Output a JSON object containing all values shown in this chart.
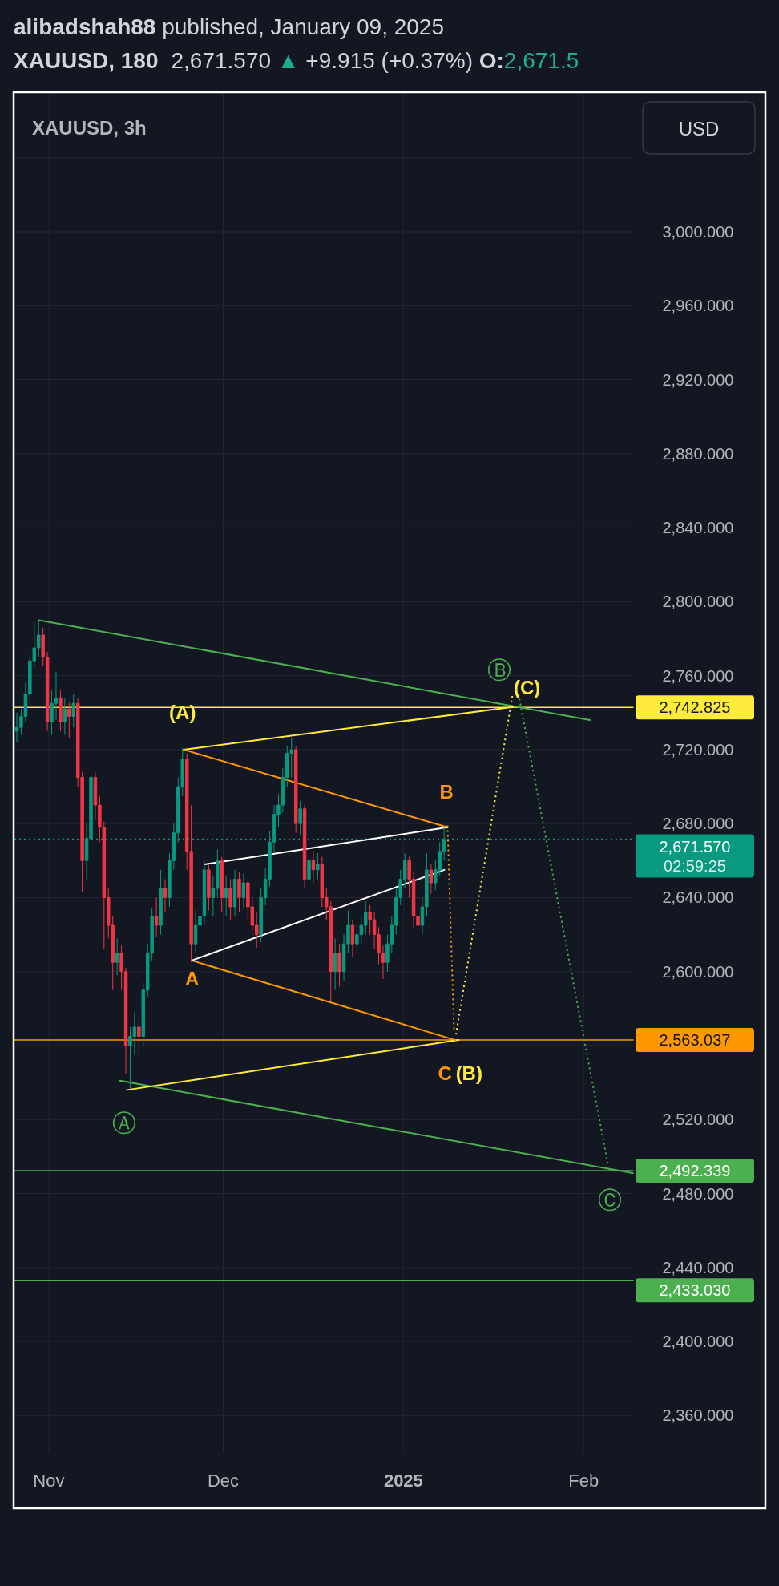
{
  "chart_data": {
    "type": "candlestick",
    "title": "XAUUSD, 180",
    "subtitle": "2,671.570 ▲ +9.915 (+0.37%) O:2,671.5",
    "annotations": [
      "alibadshah88 published, January 09, 2025",
      "XAUUSD, 3h",
      "USD",
      {
        "text": "(A)",
        "x": "2024-11-24T00:00",
        "y": 2721
      },
      {
        "text": "A",
        "x": "2024-11-25T12:00",
        "y": 2605
      },
      {
        "text": "B",
        "x": "2025-01-08T00:00",
        "y": 2678.5
      },
      {
        "text": "C",
        "x": "2025-01-10T12:00",
        "y": 2563
      },
      {
        "text": "(B)",
        "x": "2025-01-10T12:00",
        "y": 2563
      },
      {
        "text": "Ⓐ",
        "x": "2024-11-15T00:00",
        "y": 2537
      },
      {
        "text": "Ⓑ",
        "x": "2025-01-19T19:00",
        "y": 2750
      },
      {
        "text": "(C)",
        "x": "2025-01-19T19:00",
        "y": 2750
      },
      {
        "text": "Ⓒ",
        "x": "2025-02-05T07:00",
        "y": 2494
      }
    ],
    "x": [
      "2024-10-26T12:00",
      "2024-10-27T06:00",
      "2024-10-28T00:00",
      "2024-10-28T18:00",
      "2024-10-29T12:00",
      "2024-10-30T06:00",
      "2024-10-31T00:00",
      "2024-10-31T18:00",
      "2024-11-01T12:00",
      "2024-11-02T06:00",
      "2024-11-03T00:00",
      "2024-11-03T18:00",
      "2024-11-04T12:00",
      "2024-11-05T06:00",
      "2024-11-06T00:00",
      "2024-11-06T18:00",
      "2024-11-07T12:00",
      "2024-11-08T06:00",
      "2024-11-09T00:00",
      "2024-11-09T18:00",
      "2024-11-10T12:00",
      "2024-11-11T06:00",
      "2024-11-12T00:00",
      "2024-11-12T18:00",
      "2024-11-13T12:00",
      "2024-11-14T06:00",
      "2024-11-15T00:00",
      "2024-11-15T18:00",
      "2024-11-16T12:00",
      "2024-11-17T06:00",
      "2024-11-18T00:00",
      "2024-11-18T18:00",
      "2024-11-19T12:00",
      "2024-11-20T06:00",
      "2024-11-21T00:00",
      "2024-11-21T18:00",
      "2024-11-22T12:00",
      "2024-11-23T06:00",
      "2024-11-24T00:00",
      "2024-11-24T18:00",
      "2024-11-25T12:00",
      "2024-11-26T06:00",
      "2024-11-27T00:00",
      "2024-11-27T18:00",
      "2024-11-28T12:00",
      "2024-11-29T06:00",
      "2024-11-30T00:00",
      "2024-11-30T18:00",
      "2024-12-01T12:00",
      "2024-12-02T06:00",
      "2024-12-03T00:00",
      "2024-12-03T18:00",
      "2024-12-04T12:00",
      "2024-12-05T06:00",
      "2024-12-06T00:00",
      "2024-12-06T18:00",
      "2024-12-07T12:00",
      "2024-12-08T06:00",
      "2024-12-09T00:00",
      "2024-12-09T18:00",
      "2024-12-10T12:00",
      "2024-12-11T06:00",
      "2024-12-12T00:00",
      "2024-12-12T18:00",
      "2024-12-13T12:00",
      "2024-12-14T06:00",
      "2024-12-15T00:00",
      "2024-12-15T18:00",
      "2024-12-16T12:00",
      "2024-12-17T06:00",
      "2024-12-18T00:00",
      "2024-12-18T18:00",
      "2024-12-19T12:00",
      "2024-12-20T06:00",
      "2024-12-21T00:00",
      "2024-12-21T18:00",
      "2024-12-22T12:00",
      "2024-12-23T06:00",
      "2024-12-24T00:00",
      "2024-12-24T18:00",
      "2024-12-25T12:00",
      "2024-12-26T06:00",
      "2024-12-27T00:00",
      "2024-12-27T18:00",
      "2024-12-28T12:00",
      "2024-12-29T06:00",
      "2024-12-30T00:00",
      "2024-12-30T18:00",
      "2024-12-31T12:00",
      "2025-01-01T06:00",
      "2025-01-02T00:00",
      "2025-01-02T18:00",
      "2025-01-03T12:00",
      "2025-01-04T06:00",
      "2025-01-05T00:00",
      "2025-01-05T18:00",
      "2025-01-06T12:00",
      "2025-01-07T06:00",
      "2025-01-08T00:00"
    ],
    "ohlc": [
      [
        2730,
        2740,
        2724,
        2732
      ],
      [
        2732,
        2742,
        2728,
        2738
      ],
      [
        2738,
        2756,
        2735,
        2750
      ],
      [
        2750,
        2772,
        2746,
        2768
      ],
      [
        2768,
        2789,
        2764,
        2775
      ],
      [
        2775,
        2790,
        2770,
        2782
      ],
      [
        2782,
        2786,
        2765,
        2770
      ],
      [
        2770,
        2773,
        2730,
        2735
      ],
      [
        2735,
        2752,
        2728,
        2745
      ],
      [
        2745,
        2762,
        2736,
        2748
      ],
      [
        2748,
        2752,
        2730,
        2735
      ],
      [
        2735,
        2748,
        2728,
        2742
      ],
      [
        2742,
        2746,
        2726,
        2738
      ],
      [
        2738,
        2750,
        2732,
        2745
      ],
      [
        2745,
        2748,
        2700,
        2705
      ],
      [
        2705,
        2708,
        2643,
        2660
      ],
      [
        2660,
        2680,
        2650,
        2672
      ],
      [
        2672,
        2710,
        2668,
        2705
      ],
      [
        2705,
        2708,
        2682,
        2690
      ],
      [
        2690,
        2695,
        2670,
        2678
      ],
      [
        2678,
        2681,
        2612,
        2640
      ],
      [
        2640,
        2645,
        2618,
        2625
      ],
      [
        2625,
        2630,
        2590,
        2605
      ],
      [
        2605,
        2618,
        2598,
        2610
      ],
      [
        2610,
        2614,
        2590,
        2600
      ],
      [
        2600,
        2602,
        2545,
        2560
      ],
      [
        2560,
        2570,
        2537,
        2565
      ],
      [
        2565,
        2578,
        2555,
        2570
      ],
      [
        2570,
        2576,
        2556,
        2565
      ],
      [
        2565,
        2594,
        2560,
        2590
      ],
      [
        2590,
        2615,
        2586,
        2610
      ],
      [
        2610,
        2634,
        2606,
        2630
      ],
      [
        2630,
        2640,
        2619,
        2625
      ],
      [
        2625,
        2655,
        2620,
        2645
      ],
      [
        2645,
        2650,
        2632,
        2640
      ],
      [
        2640,
        2664,
        2635,
        2660
      ],
      [
        2660,
        2680,
        2655,
        2675
      ],
      [
        2675,
        2705,
        2670,
        2700
      ],
      [
        2700,
        2721,
        2695,
        2715
      ],
      [
        2715,
        2718,
        2655,
        2665
      ],
      [
        2665,
        2690,
        2605,
        2615
      ],
      [
        2615,
        2633,
        2610,
        2625
      ],
      [
        2625,
        2638,
        2616,
        2630
      ],
      [
        2630,
        2660,
        2626,
        2655
      ],
      [
        2655,
        2658,
        2633,
        2640
      ],
      [
        2640,
        2652,
        2630,
        2645
      ],
      [
        2645,
        2666,
        2640,
        2660
      ],
      [
        2660,
        2662,
        2632,
        2640
      ],
      [
        2640,
        2652,
        2630,
        2645
      ],
      [
        2645,
        2650,
        2628,
        2635
      ],
      [
        2635,
        2655,
        2630,
        2650
      ],
      [
        2650,
        2654,
        2632,
        2640
      ],
      [
        2640,
        2653,
        2634,
        2648
      ],
      [
        2648,
        2650,
        2628,
        2635
      ],
      [
        2635,
        2640,
        2620,
        2625
      ],
      [
        2625,
        2632,
        2613,
        2620
      ],
      [
        2620,
        2645,
        2616,
        2640
      ],
      [
        2640,
        2656,
        2636,
        2650
      ],
      [
        2650,
        2676,
        2646,
        2670
      ],
      [
        2670,
        2690,
        2664,
        2685
      ],
      [
        2685,
        2696,
        2678,
        2690
      ],
      [
        2690,
        2710,
        2686,
        2705
      ],
      [
        2705,
        2722,
        2700,
        2718
      ],
      [
        2718,
        2726,
        2705,
        2720
      ],
      [
        2720,
        2722,
        2675,
        2680
      ],
      [
        2680,
        2692,
        2674,
        2688
      ],
      [
        2688,
        2690,
        2645,
        2650
      ],
      [
        2650,
        2668,
        2645,
        2660
      ],
      [
        2660,
        2665,
        2648,
        2655
      ],
      [
        2655,
        2664,
        2650,
        2658
      ],
      [
        2658,
        2662,
        2635,
        2640
      ],
      [
        2640,
        2645,
        2628,
        2635
      ],
      [
        2635,
        2638,
        2584,
        2600
      ],
      [
        2600,
        2618,
        2590,
        2610
      ],
      [
        2610,
        2615,
        2592,
        2600
      ],
      [
        2600,
        2620,
        2595,
        2615
      ],
      [
        2615,
        2633,
        2610,
        2625
      ],
      [
        2625,
        2628,
        2608,
        2615
      ],
      [
        2615,
        2626,
        2610,
        2620
      ],
      [
        2620,
        2630,
        2614,
        2625
      ],
      [
        2625,
        2638,
        2620,
        2632
      ],
      [
        2632,
        2636,
        2620,
        2628
      ],
      [
        2628,
        2632,
        2612,
        2620
      ],
      [
        2620,
        2624,
        2604,
        2610
      ],
      [
        2610,
        2614,
        2596,
        2605
      ],
      [
        2605,
        2620,
        2600,
        2615
      ],
      [
        2615,
        2630,
        2610,
        2625
      ],
      [
        2625,
        2645,
        2620,
        2640
      ],
      [
        2640,
        2655,
        2636,
        2650
      ],
      [
        2650,
        2664,
        2645,
        2660
      ],
      [
        2660,
        2662,
        2640,
        2650
      ],
      [
        2650,
        2654,
        2624,
        2630
      ],
      [
        2630,
        2634,
        2615,
        2625
      ],
      [
        2625,
        2640,
        2620,
        2635
      ],
      [
        2635,
        2664,
        2630,
        2655
      ],
      [
        2655,
        2658,
        2642,
        2648
      ],
      [
        2648,
        2660,
        2644,
        2655
      ],
      [
        2655,
        2670,
        2652,
        2665
      ],
      [
        2665,
        2678.5,
        2660,
        2671.57
      ]
    ],
    "colors": [
      "#089981",
      "#089981",
      "#089981",
      "#089981",
      "#089981",
      "#089981",
      "#f23645",
      "#f23645",
      "#089981",
      "#089981",
      "#f23645",
      "#089981",
      "#f23645",
      "#089981",
      "#f23645",
      "#f23645",
      "#089981",
      "#089981",
      "#f23645",
      "#f23645",
      "#f23645",
      "#f23645",
      "#f23645",
      "#089981",
      "#f23645",
      "#f23645",
      "#089981",
      "#089981",
      "#f23645",
      "#089981",
      "#089981",
      "#089981",
      "#f23645",
      "#089981",
      "#f23645",
      "#089981",
      "#089981",
      "#089981",
      "#089981",
      "#f23645",
      "#f23645",
      "#089981",
      "#089981",
      "#089981",
      "#f23645",
      "#089981",
      "#089981",
      "#f23645",
      "#089981",
      "#f23645",
      "#089981",
      "#f23645",
      "#089981",
      "#f23645",
      "#f23645",
      "#f23645",
      "#089981",
      "#089981",
      "#089981",
      "#089981",
      "#089981",
      "#089981",
      "#089981",
      "#089981",
      "#f23645",
      "#089981",
      "#f23645",
      "#089981",
      "#f23645",
      "#089981",
      "#f23645",
      "#f23645",
      "#f23645",
      "#089981",
      "#f23645",
      "#089981",
      "#089981",
      "#f23645",
      "#089981",
      "#089981",
      "#089981",
      "#f23645",
      "#f23645",
      "#f23645",
      "#f23645",
      "#089981",
      "#089981",
      "#089981",
      "#089981",
      "#089981",
      "#f23645",
      "#f23645",
      "#f23645",
      "#089981",
      "#089981",
      "#f23645",
      "#089981",
      "#089981",
      "#089981"
    ],
    "series": [
      {
        "type": "line",
        "color": "#4caf50",
        "x": [
          "2024-10-30T08:00",
          "2025-02-02T02:00"
        ],
        "values": [
          2790,
          2736
        ]
      },
      {
        "type": "line",
        "color": "#4caf50",
        "x": [
          "2024-11-13T05:00",
          "2025-02-09T14:00"
        ],
        "values": [
          2541,
          2491
        ]
      },
      {
        "type": "line",
        "color": "#ffeb3b",
        "x": [
          "2024-11-14T10:00",
          "2025-01-10T12:00"
        ],
        "values": [
          2536,
          2563
        ]
      },
      {
        "type": "line",
        "color": "#ffeb3b",
        "x": [
          "2024-11-24T04:00",
          "2025-01-19T19:00"
        ],
        "values": [
          2720,
          2743
        ]
      },
      {
        "type": "line",
        "color": "#ff9800",
        "x": [
          "2024-11-24T04:00",
          "2025-01-08T14:00"
        ],
        "values": [
          2720,
          2678
        ]
      },
      {
        "type": "line",
        "color": "#ff9800",
        "x": [
          "2024-11-25T14:00",
          "2025-01-09T22:00"
        ],
        "values": [
          2606,
          2563
        ]
      },
      {
        "type": "line",
        "color": "#ffffff",
        "x": [
          "2024-11-27T19:00",
          "2025-01-08T14:00"
        ],
        "values": [
          2658,
          2678
        ]
      },
      {
        "type": "line",
        "color": "#ffffff",
        "x": [
          "2024-11-25T14:00",
          "2025-01-08T01:00"
        ],
        "values": [
          2606,
          2655
        ]
      },
      {
        "type": "line",
        "color": "#ff9800",
        "line_style": "dotted",
        "x": [
          "2025-01-08T14:00",
          "2025-01-09T17:00"
        ],
        "values": [
          2679,
          2568
        ]
      },
      {
        "type": "line",
        "color": "#ffeb3b",
        "line_style": "dotted",
        "x": [
          "2025-01-10T01:00",
          "2025-01-19T19:00"
        ],
        "values": [
          2566,
          2750
        ]
      },
      {
        "type": "line",
        "color": "#4caf50",
        "line_style": "dotted",
        "x": [
          "2025-01-20T19:00",
          "2025-02-05T07:00"
        ],
        "values": [
          2750,
          2494
        ]
      }
    ],
    "xlim": [
      "2024-10-26T02:00",
      "2025-02-09T14:00"
    ],
    "ylim": [
      2340,
      3075
    ],
    "xticks": [
      {
        "value": "2024-11-01",
        "label": "Nov"
      },
      {
        "value": "2024-12-01",
        "label": "Dec"
      },
      {
        "value": "2025-01-01",
        "label": "2025"
      },
      {
        "value": "2025-02-01",
        "label": "Feb"
      }
    ],
    "yticks": [
      {
        "value": 2360,
        "label": "2,360.000"
      },
      {
        "value": 2400,
        "label": "2,400.000"
      },
      {
        "value": 2440,
        "label": "2,440.000"
      },
      {
        "value": 2480,
        "label": "2,480.000"
      },
      {
        "value": 2520,
        "label": "2,520.000"
      },
      {
        "value": 2560,
        "label": null
      },
      {
        "value": 2600,
        "label": "2,600.000"
      },
      {
        "value": 2640,
        "label": "2,640.000"
      },
      {
        "value": 2680,
        "label": "2,680.000"
      },
      {
        "value": 2720,
        "label": "2,720.000"
      },
      {
        "value": 2760,
        "label": "2,760.000"
      },
      {
        "value": 2800,
        "label": "2,800.000"
      },
      {
        "value": 2840,
        "label": "2,840.000"
      },
      {
        "value": 2880,
        "label": "2,880.000"
      },
      {
        "value": 2920,
        "label": "2,920.000"
      },
      {
        "value": 2960,
        "label": "2,960.000"
      },
      {
        "value": 3000,
        "label": "3,000.000"
      },
      {
        "value": 3040,
        "label": null
      }
    ],
    "grid": true,
    "ref_lines": [
      {
        "axis": "y",
        "value": 2742.825,
        "label": "2,742.825",
        "color": "#ffeb3b"
      },
      {
        "axis": "y",
        "value": 2671.57,
        "label": "2,671.570\n02:59:25",
        "color": "#089981",
        "line_style": "dotted"
      },
      {
        "axis": "y",
        "value": 2563.037,
        "label": "2,563.037",
        "color": "#ff9800"
      },
      {
        "axis": "y",
        "value": 2492.339,
        "label": "2,492.339",
        "color": "#4caf50"
      },
      {
        "axis": "y",
        "value": 2433.03,
        "label": "2,433.030",
        "color": "#4caf50"
      }
    ]
  }
}
